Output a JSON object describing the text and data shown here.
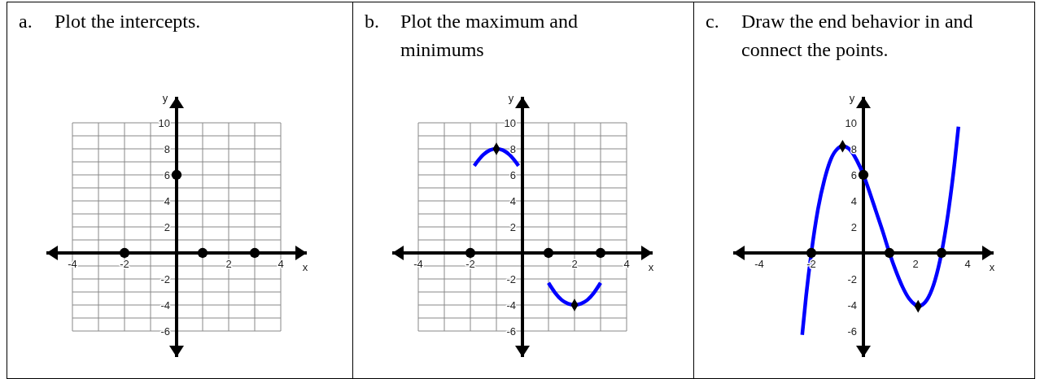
{
  "chart_data": [
    {
      "type": "scatter",
      "title": "a. Plot the intercepts.",
      "xlabel": "x",
      "ylabel": "y",
      "xlim": [
        -5,
        5
      ],
      "ylim": [
        -8,
        12
      ],
      "grid": true,
      "xticks": [
        -4,
        {
          "value": -3,
          "label": null
        },
        -2,
        {
          "value": -1,
          "label": null
        },
        {
          "value": 0,
          "label": null
        },
        {
          "value": 1,
          "label": null
        },
        2,
        {
          "value": 3,
          "label": null
        },
        4
      ],
      "yticks": [
        -6,
        {
          "value": -5,
          "label": null
        },
        -4,
        {
          "value": -3,
          "label": null
        },
        -2,
        {
          "value": -1,
          "label": null
        },
        {
          "value": 0,
          "label": null
        },
        {
          "value": 1,
          "label": null
        },
        2,
        {
          "value": 3,
          "label": null
        },
        4,
        {
          "value": 5,
          "label": null
        },
        6,
        {
          "value": 7,
          "label": null
        },
        8,
        {
          "value": 9,
          "label": null
        },
        10
      ],
      "series": [
        {
          "marker": "circle",
          "color": "#000000",
          "x": [
            -2,
            1,
            3,
            0
          ],
          "values": [
            0,
            0,
            0,
            6
          ]
        }
      ]
    },
    {
      "type": "scatter",
      "title": "b. Plot the maximum and minimums",
      "xlabel": "x",
      "ylabel": "y",
      "xlim": [
        -5,
        5
      ],
      "ylim": [
        -8,
        12
      ],
      "grid": true,
      "xticks": [
        -4,
        {
          "value": -3,
          "label": null
        },
        -2,
        {
          "value": -1,
          "label": null
        },
        {
          "value": 0,
          "label": null
        },
        {
          "value": 1,
          "label": null
        },
        2,
        {
          "value": 3,
          "label": null
        },
        4
      ],
      "yticks": [
        -6,
        {
          "value": -5,
          "label": null
        },
        -4,
        {
          "value": -3,
          "label": null
        },
        -2,
        {
          "value": -1,
          "label": null
        },
        {
          "value": 0,
          "label": null
        },
        {
          "value": 1,
          "label": null
        },
        2,
        {
          "value": 3,
          "label": null
        },
        4,
        {
          "value": 5,
          "label": null
        },
        6,
        {
          "value": 7,
          "label": null
        },
        8,
        {
          "value": 9,
          "label": null
        },
        10
      ],
      "series": [
        {
          "type": "line",
          "marker": "none",
          "color": "#0000ff",
          "x": [
            -1.85,
            -1.5,
            -1.25,
            -1,
            -0.75,
            -0.5,
            -0.15
          ],
          "values": [
            6.7,
            7.55,
            7.9,
            8,
            7.9,
            7.55,
            6.7
          ]
        },
        {
          "type": "line",
          "marker": "none",
          "color": "#0000ff",
          "x": [
            1,
            1.25,
            1.5,
            1.75,
            2,
            2.25,
            2.5,
            2.75,
            3
          ],
          "values": [
            -2.3,
            -3.05,
            -3.6,
            -3.9,
            -4,
            -3.9,
            -3.6,
            -3.05,
            -2.3
          ]
        },
        {
          "marker": "circle",
          "color": "#000000",
          "x": [
            -2,
            1,
            3
          ],
          "values": [
            0,
            0,
            0
          ]
        },
        {
          "marker": "diamond",
          "color": "#000000",
          "x": [
            -1,
            2
          ],
          "values": [
            8,
            -4
          ]
        }
      ]
    },
    {
      "type": "line",
      "title": "c. Draw the end behavior in and connect the points.",
      "xlabel": "x",
      "ylabel": "y",
      "xlim": [
        -5,
        5
      ],
      "ylim": [
        -8,
        12
      ],
      "xticks": [
        -4,
        -2,
        2,
        4
      ],
      "yticks": [
        -6,
        -4,
        -2,
        2,
        4,
        6,
        8,
        10
      ],
      "series": [
        {
          "marker": "none",
          "color": "#0000ff",
          "x": [
            -2.35,
            -2.2,
            -2,
            -1.75,
            -1.5,
            -1.25,
            -1,
            -0.8,
            -0.5,
            -0.25,
            0,
            0.25,
            0.5,
            0.75,
            1,
            1.25,
            1.5,
            1.75,
            2,
            2.1,
            2.25,
            2.5,
            2.75,
            3,
            3.25,
            3.5,
            3.65
          ],
          "values": [
            -6.3,
            -3.3,
            0,
            3.3,
            5.6,
            7.2,
            8,
            8.2,
            7.9,
            7.1,
            6,
            4.6,
            3.1,
            1.6,
            0,
            -1.4,
            -2.6,
            -3.5,
            -4,
            -4.1,
            -4,
            -3.4,
            -2.1,
            0,
            3,
            6.9,
            9.7
          ]
        },
        {
          "type": "scatter",
          "marker": "circle",
          "color": "#000000",
          "x": [
            -2,
            1,
            3,
            0
          ],
          "values": [
            0,
            0,
            0,
            6
          ]
        },
        {
          "type": "scatter",
          "marker": "diamond",
          "color": "#000000",
          "x": [
            -0.8,
            2.1
          ],
          "values": [
            8.2,
            -4.1
          ]
        }
      ]
    }
  ]
}
